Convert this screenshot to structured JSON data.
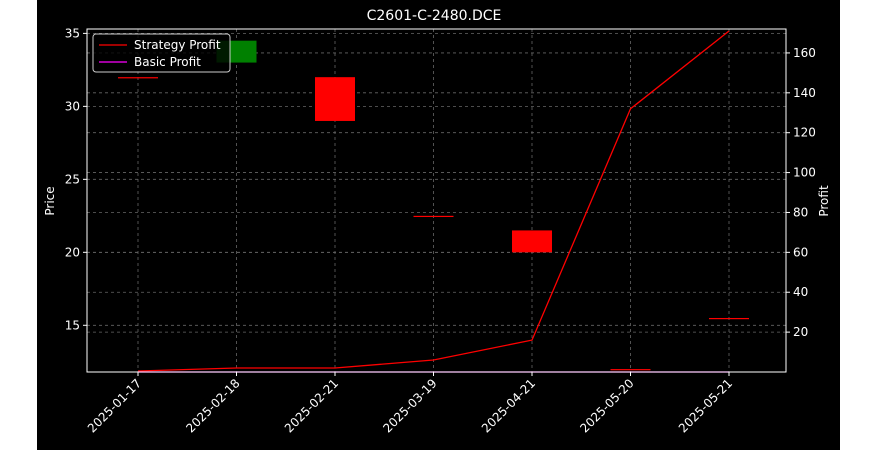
{
  "chart_data": {
    "type": "candlestick+line",
    "title": "C2601-C-2480.DCE",
    "ylabel_left": "Price",
    "ylabel_right": "Profit",
    "xlabel": "",
    "categories": [
      "2025-01-17",
      "2025-02-18",
      "2025-02-21",
      "2025-03-19",
      "2025-04-21",
      "2025-05-20",
      "2025-05-21"
    ],
    "ylim_left": [
      11.8,
      35.3
    ],
    "ylim_right": [
      0,
      172
    ],
    "yticks_left": [
      15,
      20,
      25,
      30,
      35
    ],
    "yticks_right": [
      20,
      40,
      60,
      80,
      100,
      120,
      140,
      160
    ],
    "grid": true,
    "legend_position": "top-left",
    "candles": [
      {
        "date": "2025-01-17",
        "open": 32.0,
        "close": 32.0,
        "color": "#ff0000"
      },
      {
        "date": "2025-02-18",
        "open": 33.0,
        "close": 34.5,
        "color": "#008000"
      },
      {
        "date": "2025-02-21",
        "open": 32.0,
        "close": 29.0,
        "color": "#ff0000"
      },
      {
        "date": "2025-03-19",
        "open": 22.5,
        "close": 22.5,
        "color": "#ff0000"
      },
      {
        "date": "2025-04-21",
        "open": 21.5,
        "close": 20.0,
        "color": "#ff0000"
      },
      {
        "date": "2025-05-20",
        "open": 12.0,
        "close": 12.0,
        "color": "#ff0000"
      },
      {
        "date": "2025-05-21",
        "open": 15.5,
        "close": 15.5,
        "color": "#ff0000"
      }
    ],
    "series": [
      {
        "name": "Strategy Profit",
        "color": "#ff0000",
        "axis": "right",
        "x": [
          0,
          1,
          2,
          3,
          4,
          5,
          6
        ],
        "values": [
          0.5,
          2,
          2,
          6,
          16,
          132,
          171
        ]
      },
      {
        "name": "Basic Profit",
        "color": "#ff00ff",
        "axis": "right",
        "x": [
          0,
          6
        ],
        "values": [
          0,
          0
        ]
      }
    ]
  }
}
